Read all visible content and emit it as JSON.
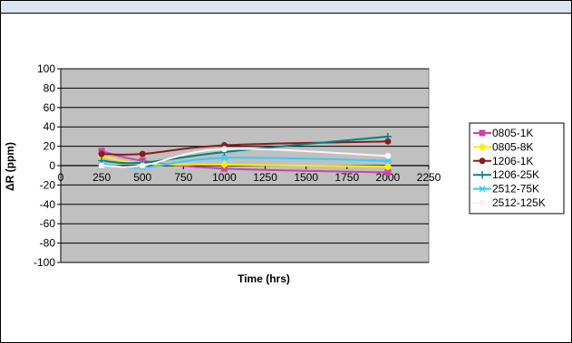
{
  "chart_data": {
    "type": "line",
    "title": "",
    "xlabel": "Time (hrs)",
    "ylabel": "ΔR (ppm)",
    "xlim": [
      0,
      2250
    ],
    "ylim": [
      -100,
      100
    ],
    "x_ticks": [
      0,
      250,
      500,
      750,
      1000,
      1250,
      1500,
      1750,
      2000,
      2250
    ],
    "y_ticks": [
      100,
      80,
      60,
      40,
      20,
      0,
      -20,
      -40,
      -60,
      -80,
      -100
    ],
    "grid": true,
    "plot_background": "#c0c0c0",
    "legend_position": "right",
    "x": [
      250,
      500,
      1000,
      2000
    ],
    "series": [
      {
        "name": "0805-1K",
        "color": "#cc44aa",
        "marker": "square",
        "values": [
          15,
          5,
          -3,
          -7
        ]
      },
      {
        "name": "0805-8K",
        "color": "#ffee00",
        "marker": "diamond",
        "values": [
          10,
          2,
          1,
          -1
        ]
      },
      {
        "name": "1206-1K",
        "color": "#8b1a1a",
        "marker": "circle",
        "values": [
          12,
          12,
          21,
          25
        ]
      },
      {
        "name": "1206-25K",
        "color": "#008080",
        "marker": "plus",
        "values": [
          5,
          3,
          14,
          30
        ]
      },
      {
        "name": "2512-75K",
        "color": "#33ccff",
        "marker": "asterisk",
        "values": [
          2,
          -2,
          8,
          5
        ]
      },
      {
        "name": "2512-125K",
        "color": "#f5f5f5",
        "marker": "circle",
        "values": [
          0,
          0,
          17,
          10
        ]
      }
    ]
  }
}
